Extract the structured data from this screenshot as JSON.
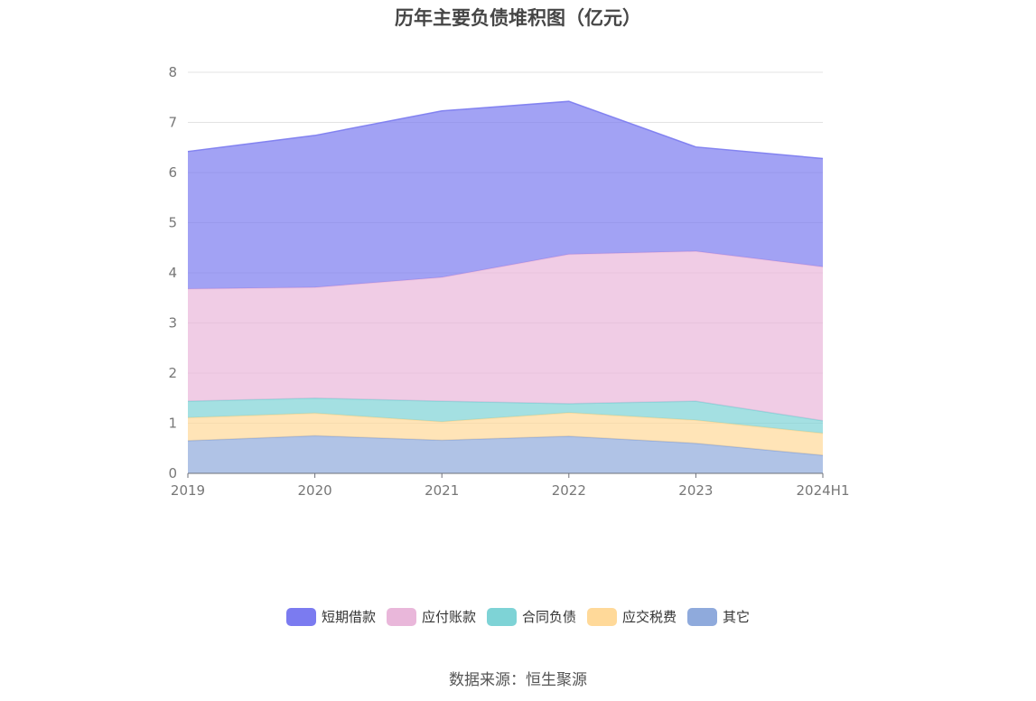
{
  "chart_data": {
    "type": "area",
    "stacked": true,
    "title": "历年主要负债堆积图（亿元）",
    "categories": [
      "2019",
      "2020",
      "2021",
      "2022",
      "2023",
      "2024H1"
    ],
    "ylim": [
      0,
      8
    ],
    "yticks": [
      "0",
      "1",
      "2",
      "3",
      "4",
      "5",
      "6",
      "7",
      "8"
    ],
    "grid": true,
    "legend_position": "bottom",
    "series": [
      {
        "name": "其它",
        "color": "#8faadc",
        "values": [
          0.65,
          0.75,
          0.66,
          0.74,
          0.6,
          0.36
        ]
      },
      {
        "name": "应交税费",
        "color": "#ffd999",
        "values": [
          0.46,
          0.45,
          0.37,
          0.47,
          0.46,
          0.44
        ]
      },
      {
        "name": "合同负债",
        "color": "#7ed3d6",
        "values": [
          0.33,
          0.3,
          0.41,
          0.18,
          0.38,
          0.25
        ]
      },
      {
        "name": "应付账款",
        "color": "#e9b7da",
        "values": [
          2.24,
          2.21,
          2.47,
          2.98,
          2.99,
          3.07
        ]
      },
      {
        "name": "短期借款",
        "color": "#7b7bf0",
        "values": [
          2.74,
          3.03,
          3.32,
          3.05,
          2.08,
          2.16
        ]
      }
    ],
    "legend_order": [
      "短期借款",
      "应付账款",
      "合同负债",
      "应交税费",
      "其它"
    ]
  },
  "source_note": "数据来源：恒生聚源"
}
